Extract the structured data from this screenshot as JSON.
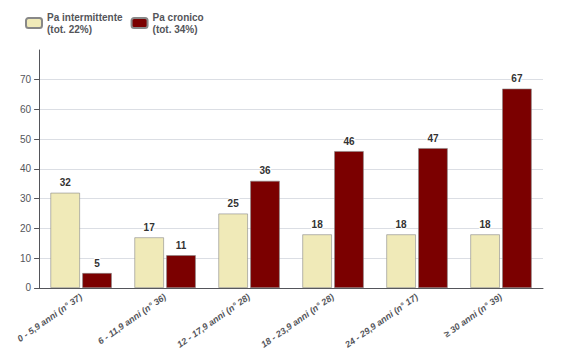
{
  "chart_data": {
    "type": "bar",
    "categories": [
      "0 - 5,9 anni (n° 37)",
      "6 - 11,9 anni (n° 36)",
      "12 - 17,9 anni (n° 28)",
      "18 - 23,9 anni (n° 28)",
      "24 - 29,9 anni (n° 17)",
      "≥ 30 anni (n° 39)"
    ],
    "series": [
      {
        "name": "Pa intermittente\n(tot. 22%)",
        "color": "#F0EAB8",
        "values": [
          32,
          17,
          25,
          18,
          18,
          18
        ]
      },
      {
        "name": "Pa cronico\n(tot. 34%)",
        "color": "#7B0000",
        "values": [
          5,
          11,
          36,
          46,
          47,
          67
        ]
      }
    ],
    "ylim": [
      0,
      80
    ],
    "yticks": [
      0,
      10,
      20,
      30,
      40,
      50,
      60,
      70
    ],
    "grid": true,
    "legend": "upper left",
    "data_labels": true
  }
}
